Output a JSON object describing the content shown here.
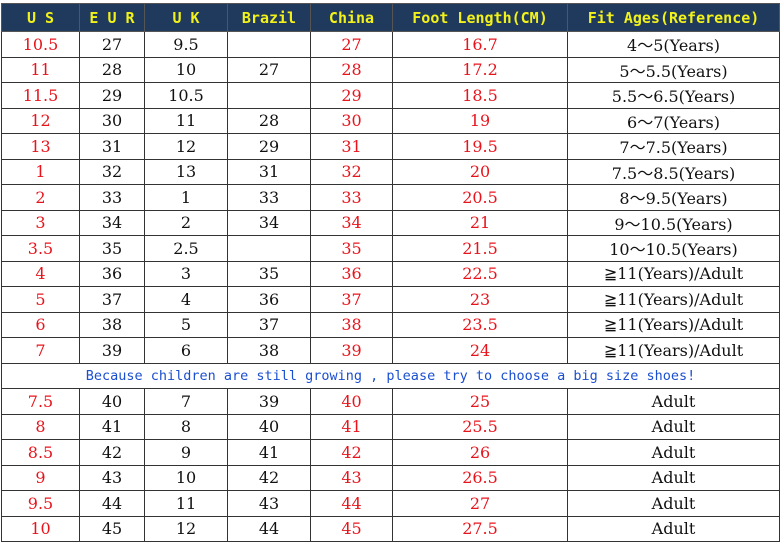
{
  "colors": {
    "header_bg": "#1f3a5c",
    "header_text": "#f2f21a",
    "red": "#e8141c",
    "note": "#1a4fd0"
  },
  "headers": [
    "U S",
    "E U R",
    "U K",
    "Brazil",
    "China",
    "Foot Length(CM)",
    "Fit Ages(Reference)"
  ],
  "rows_kids": [
    [
      "10.5",
      "27",
      "9.5",
      "",
      "27",
      "16.7",
      "4～5(Years)"
    ],
    [
      "11",
      "28",
      "10",
      "27",
      "28",
      "17.2",
      "5～5.5(Years)"
    ],
    [
      "11.5",
      "29",
      "10.5",
      "",
      "29",
      "18.5",
      "5.5～6.5(Years)"
    ],
    [
      "12",
      "30",
      "11",
      "28",
      "30",
      "19",
      "6～7(Years)"
    ],
    [
      "13",
      "31",
      "12",
      "29",
      "31",
      "19.5",
      "7～7.5(Years)"
    ],
    [
      "1",
      "32",
      "13",
      "31",
      "32",
      "20",
      "7.5～8.5(Years)"
    ],
    [
      "2",
      "33",
      "1",
      "33",
      "33",
      "20.5",
      "8～9.5(Years)"
    ],
    [
      "3",
      "34",
      "2",
      "34",
      "34",
      "21",
      "9～10.5(Years)"
    ],
    [
      "3.5",
      "35",
      "2.5",
      "",
      "35",
      "21.5",
      "10～10.5(Years)"
    ],
    [
      "4",
      "36",
      "3",
      "35",
      "36",
      "22.5",
      "≧11(Years)/Adult"
    ],
    [
      "5",
      "37",
      "4",
      "36",
      "37",
      "23",
      "≧11(Years)/Adult"
    ],
    [
      "6",
      "38",
      "5",
      "37",
      "38",
      "23.5",
      "≧11(Years)/Adult"
    ],
    [
      "7",
      "39",
      "6",
      "38",
      "39",
      "24",
      "≧11(Years)/Adult"
    ]
  ],
  "note": "Because children are still growing , please try to choose a big size shoes!",
  "rows_adult": [
    [
      "7.5",
      "40",
      "7",
      "39",
      "40",
      "25",
      "Adult"
    ],
    [
      "8",
      "41",
      "8",
      "40",
      "41",
      "25.5",
      "Adult"
    ],
    [
      "8.5",
      "42",
      "9",
      "41",
      "42",
      "26",
      "Adult"
    ],
    [
      "9",
      "43",
      "10",
      "42",
      "43",
      "26.5",
      "Adult"
    ],
    [
      "9.5",
      "44",
      "11",
      "43",
      "44",
      "27",
      "Adult"
    ],
    [
      "10",
      "45",
      "12",
      "44",
      "45",
      "27.5",
      "Adult"
    ]
  ]
}
